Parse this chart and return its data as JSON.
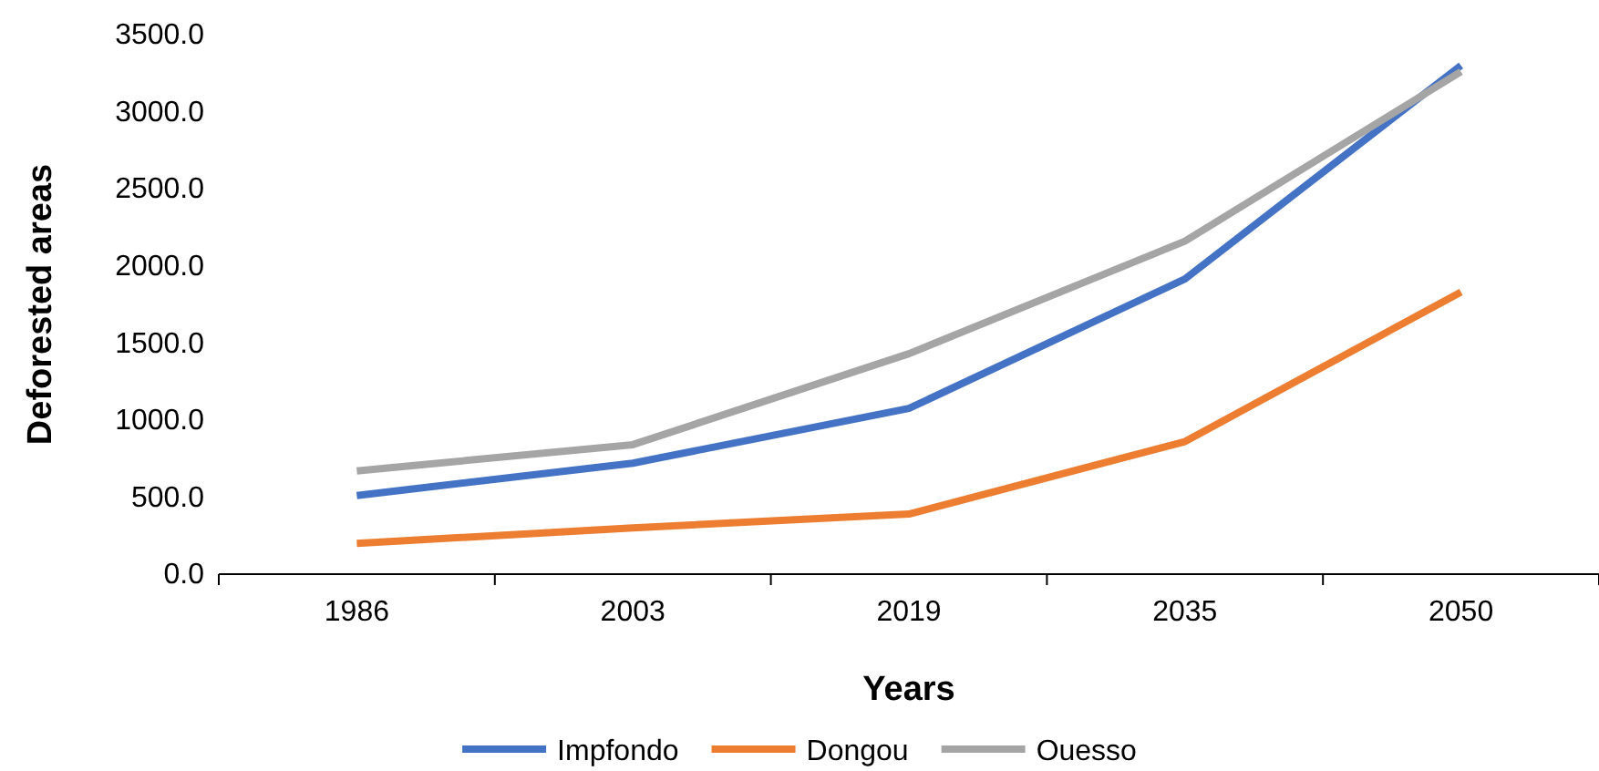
{
  "chart_data": {
    "type": "line",
    "xlabel": "Years",
    "ylabel": "Deforested areas",
    "categories": [
      "1986",
      "2003",
      "2019",
      "2035",
      "2050"
    ],
    "series": [
      {
        "name": "Impfondo",
        "color": "#4472c4",
        "values": [
          510,
          720,
          1075,
          1915,
          3300
        ]
      },
      {
        "name": "Dongou",
        "color": "#ed7d31",
        "values": [
          200,
          300,
          390,
          860,
          1830
        ]
      },
      {
        "name": "Ouesso",
        "color": "#a5a5a5",
        "values": [
          670,
          840,
          1430,
          2160,
          3260
        ]
      }
    ],
    "ylim": [
      0,
      3500
    ],
    "yticks": [
      {
        "value": 0,
        "label": "0.0"
      },
      {
        "value": 500,
        "label": "500.0"
      },
      {
        "value": 1000,
        "label": "1000.0"
      },
      {
        "value": 1500,
        "label": "1500.0"
      },
      {
        "value": 2000,
        "label": "2000.0"
      },
      {
        "value": 2500,
        "label": "2500.0"
      },
      {
        "value": 3000,
        "label": "3000.0"
      },
      {
        "value": 3500,
        "label": "3500.0"
      }
    ],
    "grid": false,
    "legend": "bottom",
    "marker": "none",
    "line_style": "solid"
  }
}
